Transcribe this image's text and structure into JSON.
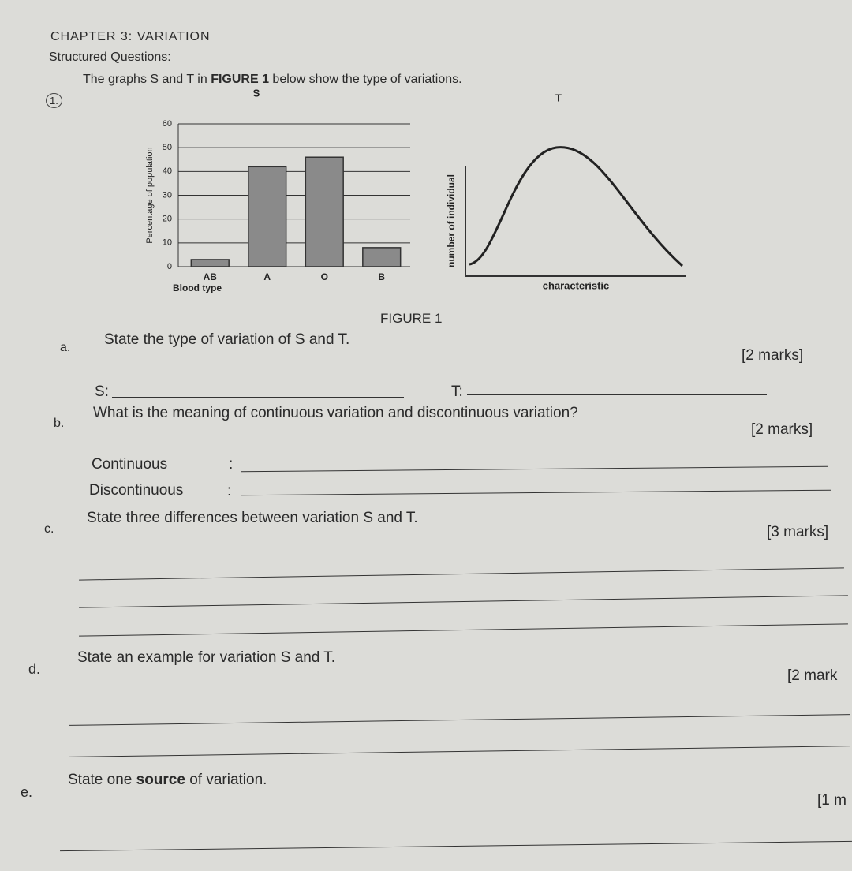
{
  "header": {
    "chapter": "CHAPTER 3: VARIATION",
    "section": "Structured Questions:",
    "number": "1.",
    "intro": [
      "The graphs S and T in ",
      "FIGURE 1",
      " below show the type of variations."
    ]
  },
  "chart_data": [
    {
      "type": "bar",
      "title": "S",
      "x_label": "Blood type",
      "y_label": "Percentage of population",
      "categories": [
        "AB",
        "A",
        "O",
        "B"
      ],
      "values": [
        3,
        42,
        46,
        8
      ],
      "color": "#8a8a8a",
      "ylim": [
        0,
        60
      ],
      "yticks": [
        0,
        10,
        20,
        30,
        40,
        50,
        60
      ],
      "grid": true
    },
    {
      "type": "curve",
      "title": "T",
      "x_label": "characteristic",
      "y_label": "number of individual"
    }
  ],
  "figure_caption": "FIGURE 1",
  "questions": [
    {
      "label": "a.",
      "text": "State the type of variation of S and T.",
      "marks": "[2 marks]",
      "prompts": [
        "S:",
        "T:"
      ]
    },
    {
      "label": "b.",
      "text": "What is the meaning of continuous variation and discontinuous variation?",
      "marks": "[2 marks]",
      "prompts": [
        "Continuous",
        "Discontinuous"
      ],
      "separator": ":"
    },
    {
      "label": "c.",
      "text": "State three differences between variation S and T.",
      "marks": "[3 marks]"
    },
    {
      "label": "d.",
      "text": "State an example for variation S and T.",
      "marks": "[2 mark"
    },
    {
      "label": "e.",
      "text": [
        "State one ",
        "source",
        " of variation."
      ],
      "marks": "[1 m"
    }
  ]
}
